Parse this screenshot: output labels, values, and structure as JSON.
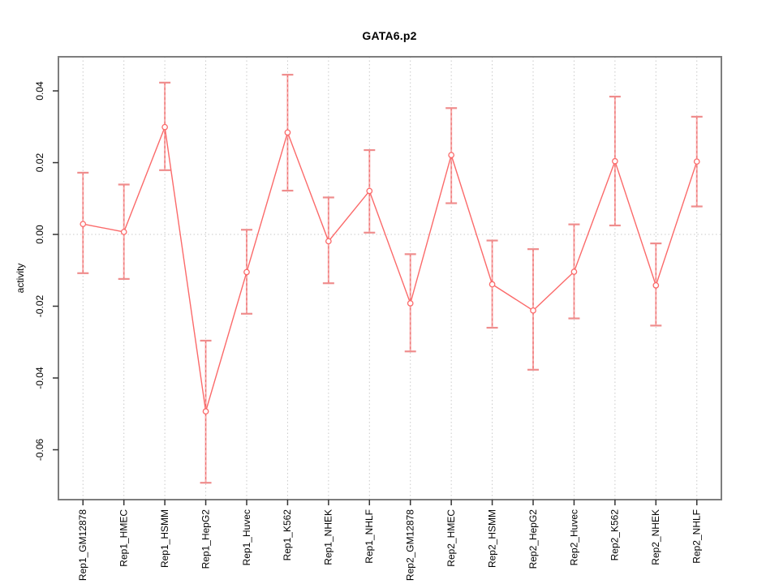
{
  "title": "GATA6.p2",
  "axes": {
    "ylabel": "activity",
    "xlabel": "",
    "ytick_labels": [
      "-0.06",
      "-0.04",
      "-0.02",
      "0.00",
      "0.02",
      "0.04"
    ],
    "ytick_values": [
      -0.06,
      -0.04,
      -0.02,
      0.0,
      0.02,
      0.04
    ]
  },
  "chart_data": {
    "type": "line",
    "title": "GATA6.p2",
    "xlabel": "",
    "ylabel": "activity",
    "categories": [
      "Rep1_GM12878",
      "Rep1_HMEC",
      "Rep1_HSMM",
      "Rep1_HepG2",
      "Rep1_Huvec",
      "Rep1_K562",
      "Rep1_NHEK",
      "Rep1_NHLF",
      "Rep2_GM12878",
      "Rep2_HMEC",
      "Rep2_HSMM",
      "Rep2_HepG2",
      "Rep2_Huvec",
      "Rep2_K562",
      "Rep2_NHEK",
      "Rep2_NHLF"
    ],
    "series": [
      {
        "name": "activity",
        "marker": "open-circle",
        "values": [
          0.0029,
          0.0007,
          0.0299,
          -0.0493,
          -0.0105,
          0.0284,
          -0.0019,
          0.0121,
          -0.0192,
          0.0221,
          -0.0139,
          -0.0212,
          -0.0104,
          0.0204,
          -0.0142,
          0.0203
        ],
        "upper": [
          0.0172,
          0.0139,
          0.0423,
          -0.0296,
          0.0013,
          0.0445,
          0.0103,
          0.0235,
          -0.0055,
          0.0352,
          -0.0017,
          -0.0041,
          0.0028,
          0.0384,
          -0.0025,
          0.0328
        ],
        "lower": [
          -0.0108,
          -0.0124,
          0.0179,
          -0.0692,
          -0.0221,
          0.0122,
          -0.0136,
          0.0005,
          -0.0326,
          0.0087,
          -0.026,
          -0.0377,
          -0.0234,
          0.0025,
          -0.0254,
          0.0078
        ]
      }
    ],
    "ylim": [
      -0.0739,
      0.0495
    ],
    "zero_line": 0,
    "grid": {
      "vertical_at_categories": true,
      "horizontal_at_zero": true,
      "style": "dotted"
    },
    "legend": "none"
  },
  "colors": {
    "line": "#fb6a6a",
    "point_fill": "#ffffff",
    "error_bar": "#f5a9a9",
    "error_bar_dash": "#f06a6a",
    "error_cap": "#ef8d8d",
    "grid": "#c9c9c9",
    "box": "#7d7d7d",
    "tick": "#333333",
    "text": "#000000",
    "background": "#ffffff"
  }
}
